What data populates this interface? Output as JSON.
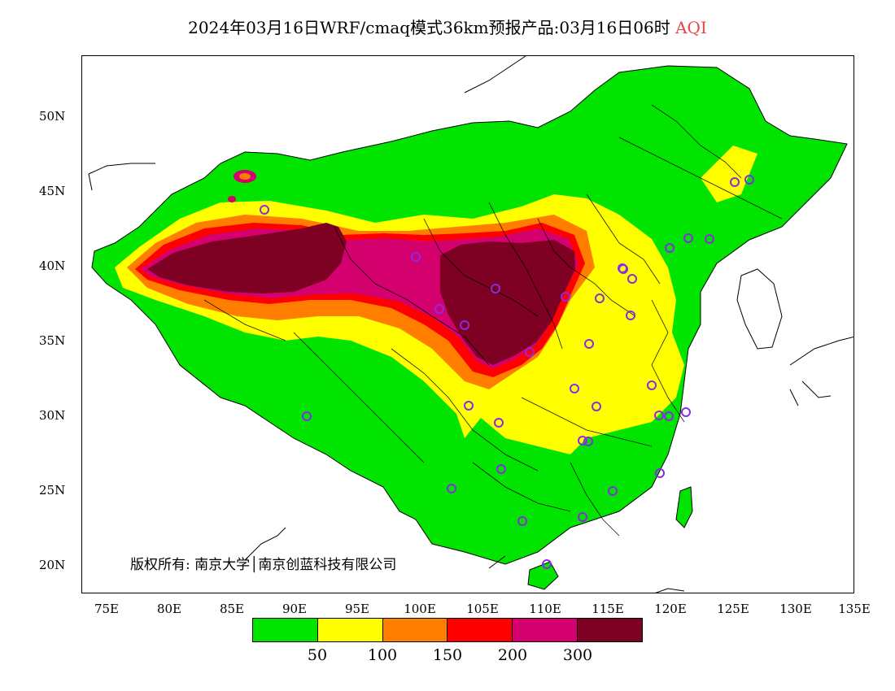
{
  "title": {
    "main": "2024年03月16日WRF/cmaq模式36km预报产品:03月16日06时",
    "variable": "AQI"
  },
  "axes": {
    "lat_labels": [
      "50N",
      "45N",
      "40N",
      "35N",
      "30N",
      "25N",
      "20N"
    ],
    "lon_labels": [
      "75E",
      "80E",
      "85E",
      "90E",
      "95E",
      "100E",
      "105E",
      "110E",
      "115E",
      "120E",
      "125E",
      "130E",
      "135E"
    ]
  },
  "copyright": "版权所有: 南京大学│南京创蓝科技有限公司",
  "legend": {
    "colors": [
      "#00e400",
      "#ffff00",
      "#ff7e00",
      "#ff0000",
      "#d4006e",
      "#7e0023"
    ],
    "labels": [
      "50",
      "100",
      "150",
      "200",
      "300"
    ]
  },
  "colors": {
    "green": "#00e400",
    "yellow": "#ffff00",
    "orange": "#ff7e00",
    "red": "#ff0000",
    "purple": "#d4006e",
    "maroon": "#7e0023",
    "station_marker": "#8a2be2"
  },
  "stations": {
    "count": 36,
    "marker": "circle-icon"
  }
}
